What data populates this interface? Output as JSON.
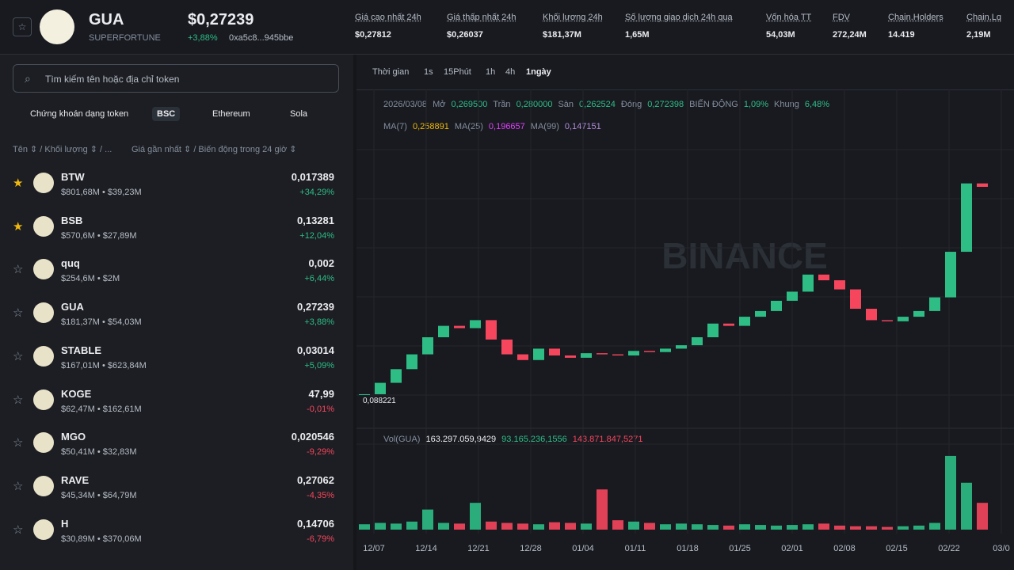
{
  "header": {
    "symbol": "GUA",
    "name": "SUPERFORTUNE",
    "price": "$0,27239",
    "change": "+3,88%",
    "address": "0xa5c8...945bbe",
    "stats": [
      {
        "label": "Giá cao nhất 24h",
        "value": "$0,27812"
      },
      {
        "label": "Giá thấp nhất 24h",
        "value": "$0,26037"
      },
      {
        "label": "Khối lượng 24h",
        "value": "$181,37M"
      },
      {
        "label": "Số lượng giao dịch 24h qua",
        "value": "1,65M"
      },
      {
        "label": "Vốn hóa TT",
        "value": "54,03M"
      },
      {
        "label": "FDV",
        "value": "272,24M"
      },
      {
        "label": "Chain.Holders",
        "value": "14.419"
      },
      {
        "label": "Chain.Lq",
        "value": "2,19M"
      }
    ]
  },
  "sidebar": {
    "search": "Tìm kiếm tên hoặc địa chỉ token",
    "tabs": [
      "Chứng khoán dạng token",
      "BSC",
      "Ethereum",
      "Sola"
    ],
    "columns": [
      "Tên ⇕ / Khối lượng ⇕ / ...",
      "Giá gần nhất ⇕ / Biến động trong 24 giờ ⇕"
    ],
    "tokens": [
      {
        "symbol": "BTW",
        "sub": "$801,68M • $39,23M",
        "price": "0,017389",
        "change": "+34,29%",
        "starred": true
      },
      {
        "symbol": "BSB",
        "sub": "$570,6M • $27,89M",
        "price": "0,13281",
        "change": "+12,04%",
        "starred": true
      },
      {
        "symbol": "quq",
        "sub": "$254,6M • $2M",
        "price": "0,002",
        "change": "+6,44%",
        "starred": false
      },
      {
        "symbol": "GUA",
        "sub": "$181,37M • $54,03M",
        "price": "0,27239",
        "change": "+3,88%",
        "starred": false
      },
      {
        "symbol": "STABLE",
        "sub": "$167,01M • $623,84M",
        "price": "0,03014",
        "change": "+5,09%",
        "starred": false
      },
      {
        "symbol": "KOGE",
        "sub": "$62,47M • $162,61M",
        "price": "47,99",
        "change": "-0,01%",
        "starred": false
      },
      {
        "symbol": "MGO",
        "sub": "$50,41M • $32,83M",
        "price": "0,020546",
        "change": "-9,29%",
        "starred": false
      },
      {
        "symbol": "RAVE",
        "sub": "$45,34M • $64,79M",
        "price": "0,27062",
        "change": "-4,35%",
        "starred": false
      },
      {
        "symbol": "H",
        "sub": "$30,89M • $370,06M",
        "price": "0,14706",
        "change": "-6,79%",
        "starred": false
      }
    ]
  },
  "toolbar": [
    "Thời gian",
    "1s",
    "15Phút",
    "1h",
    "4h",
    "1ngày"
  ],
  "legend": {
    "ohlc": [
      "2026/03/08",
      "Mở",
      "0,269500",
      "Trần",
      "0,280000",
      "Sàn",
      "0,262524",
      "Đóng",
      "0,272398",
      "BIẾN ĐỘNG",
      "1,09%",
      "Khung",
      "6,48%"
    ],
    "ma": [
      "MA(7)",
      "0,258891",
      "MA(25)",
      "0,196657",
      "MA(99)",
      "0,147151"
    ],
    "volume": [
      "Vol(GUA)",
      "163.297.059,9429",
      "93.165.236,1556",
      "143.871.847,5271"
    ]
  },
  "watermark": "BINANCE",
  "low_label": "0,088221",
  "dates": [
    "12/07",
    "12/14",
    "12/21",
    "12/28",
    "01/04",
    "01/11",
    "01/18",
    "01/25",
    "02/01",
    "02/08",
    "02/15",
    "02/22",
    "03/0"
  ],
  "chart": {
    "type": "candlestick",
    "ylim": [
      0.074,
      0.338
    ],
    "close": [
      0.09,
      0.1,
      0.112,
      0.125,
      0.14,
      0.15,
      0.148,
      0.155,
      0.138,
      0.125,
      0.12,
      0.13,
      0.124,
      0.122,
      0.126,
      0.125,
      0.124,
      0.128,
      0.127,
      0.13,
      0.133,
      0.14,
      0.152,
      0.15,
      0.158,
      0.163,
      0.172,
      0.18,
      0.195,
      0.19,
      0.182,
      0.165,
      0.155,
      0.154,
      0.158,
      0.163,
      0.175,
      0.215,
      0.275,
      0.272
    ],
    "volume_ylim": [
      0,
      130
    ],
    "volume": [
      8,
      10,
      9,
      12,
      30,
      10,
      9,
      40,
      12,
      10,
      9,
      8,
      11,
      10,
      9,
      60,
      14,
      12,
      10,
      8,
      9,
      8,
      7,
      6,
      8,
      7,
      6,
      7,
      8,
      9,
      6,
      5,
      5,
      4,
      5,
      6,
      10,
      110,
      70,
      40
    ]
  }
}
